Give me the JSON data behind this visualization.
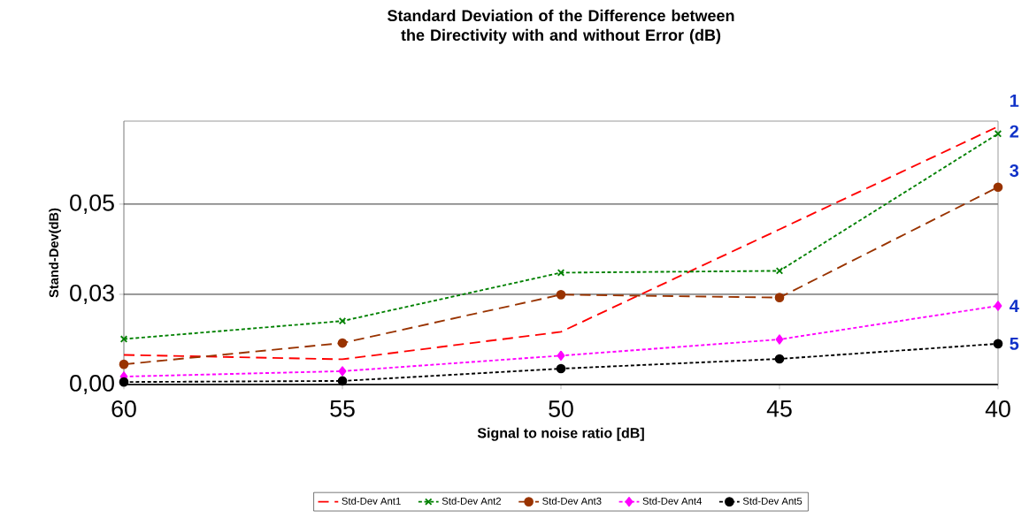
{
  "chart_data": {
    "type": "line",
    "title": "Standard Deviation of the Difference between the Directivity with and without Error (dB)",
    "xlabel": "Signal to noise ratio [dB]",
    "ylabel": "Stand-Dev(dB)",
    "categories": [
      "60",
      "55",
      "50",
      "45",
      "40"
    ],
    "ylim": [
      0,
      0.073
    ],
    "yticks": [
      {
        "value": 0,
        "label": "0,00"
      },
      {
        "value": 0.025,
        "label": "0,03"
      },
      {
        "value": 0.05,
        "label": "0,05"
      }
    ],
    "grid": "y",
    "legend": "bottom",
    "series": [
      {
        "name": "Std-Dev  Ant1",
        "color": "#ff0000",
        "values": [
          0.0082,
          0.007,
          0.0146,
          0.043,
          0.0715
        ],
        "marker": "none",
        "line_style": "dashed"
      },
      {
        "name": "Std-Dev  Ant2",
        "color": "#008000",
        "values": [
          0.0126,
          0.0176,
          0.031,
          0.0315,
          0.0695
        ],
        "marker": "cross",
        "line_style": "dotted"
      },
      {
        "name": "Std-Dev  Ant3",
        "color": "#993300",
        "values": [
          0.0056,
          0.0115,
          0.0249,
          0.0241,
          0.0547
        ],
        "marker": "circle",
        "line_style": "dashed"
      },
      {
        "name": "Std-Dev  Ant4",
        "color": "#ff00ff",
        "values": [
          0.0022,
          0.0037,
          0.008,
          0.0125,
          0.0218
        ],
        "marker": "diamond",
        "line_style": "dotted"
      },
      {
        "name": "Std-Dev  Ant5",
        "color": "#000000",
        "values": [
          0.0007,
          0.001,
          0.0044,
          0.0071,
          0.0113
        ],
        "marker": "circle",
        "line_style": "dotted"
      }
    ],
    "annotations": [
      {
        "text": "1",
        "x": "40",
        "y": 0.0715
      },
      {
        "text": "2",
        "x": "40",
        "y": 0.0695
      },
      {
        "text": "3",
        "x": "40",
        "y": 0.0547
      },
      {
        "text": "4",
        "x": "40",
        "y": 0.0218
      },
      {
        "text": "5",
        "x": "40",
        "y": 0.0113
      }
    ]
  }
}
